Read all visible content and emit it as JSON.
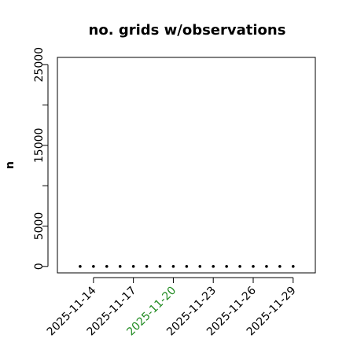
{
  "chart_data": {
    "type": "scatter",
    "title": "no. grids w/observations",
    "ylabel": "n",
    "x": [
      "2025-11-13",
      "2025-11-14",
      "2025-11-15",
      "2025-11-16",
      "2025-11-17",
      "2025-11-18",
      "2025-11-19",
      "2025-11-20",
      "2025-11-21",
      "2025-11-22",
      "2025-11-23",
      "2025-11-24",
      "2025-11-25",
      "2025-11-26",
      "2025-11-27",
      "2025-11-28",
      "2025-11-29"
    ],
    "values": [
      0,
      0,
      0,
      0,
      0,
      0,
      0,
      0,
      0,
      0,
      0,
      0,
      0,
      0,
      0,
      0,
      0
    ],
    "color": "#000000",
    "xlim": [
      "2025-11-11T07:00",
      "2025-11-30T16:00"
    ],
    "xticks": [
      "2025-11-14",
      "2025-11-17",
      "2025-11-20",
      "2025-11-23",
      "2025-11-26",
      "2025-11-29"
    ],
    "xtick_label_colors": [
      "#000000",
      "#000000",
      "#228b22",
      "#000000",
      "#000000",
      "#000000"
    ],
    "ylim": [
      -800,
      25900
    ],
    "yticks": [
      0,
      5000,
      {
        "value": 10000,
        "label": null
      },
      15000,
      {
        "value": 20000,
        "label": null
      },
      25000
    ],
    "grid": false
  }
}
